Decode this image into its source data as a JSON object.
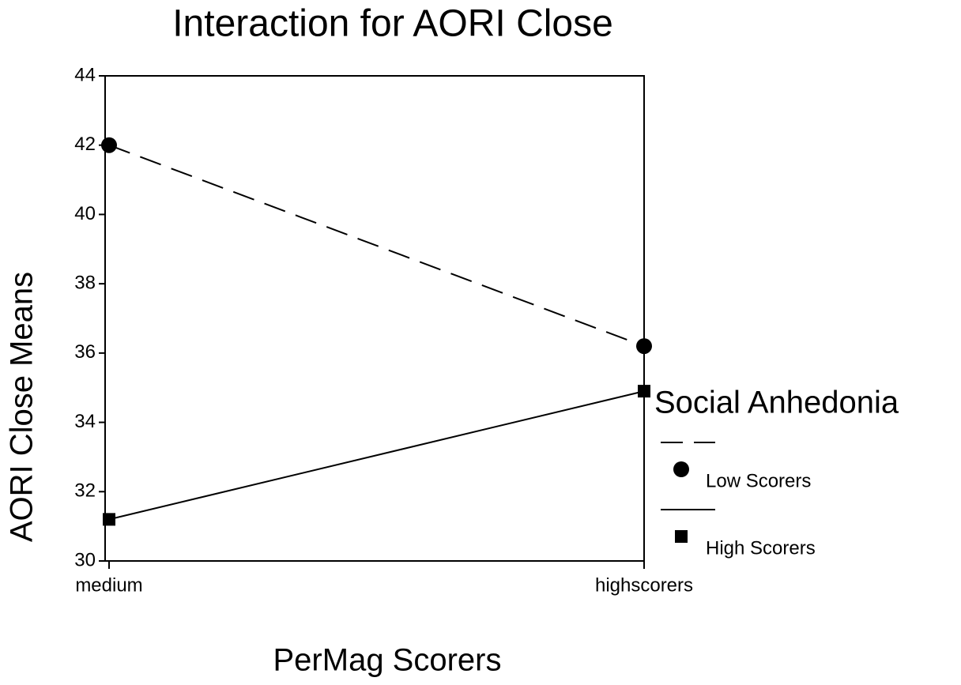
{
  "chart_data": {
    "type": "line",
    "title": "Interaction for AORI Close",
    "x_label": "PerMag Scorers",
    "y_label": "AORI Close Means",
    "legend_title": "Social Anhedonia",
    "categories": [
      "medium",
      "highscorers"
    ],
    "series": [
      {
        "name": "Low Scorers",
        "color": "#000000",
        "line_style": "dashed",
        "marker": "circle",
        "values": [
          42.0,
          36.2
        ]
      },
      {
        "name": "High Scorers",
        "color": "#000000",
        "line_style": "solid",
        "marker": "square",
        "values": [
          31.2,
          34.9
        ]
      }
    ],
    "ylim": [
      30,
      44
    ],
    "yticks": [
      30,
      32,
      34,
      36,
      38,
      40,
      42,
      44
    ],
    "grid": false,
    "legend_position": "right"
  }
}
